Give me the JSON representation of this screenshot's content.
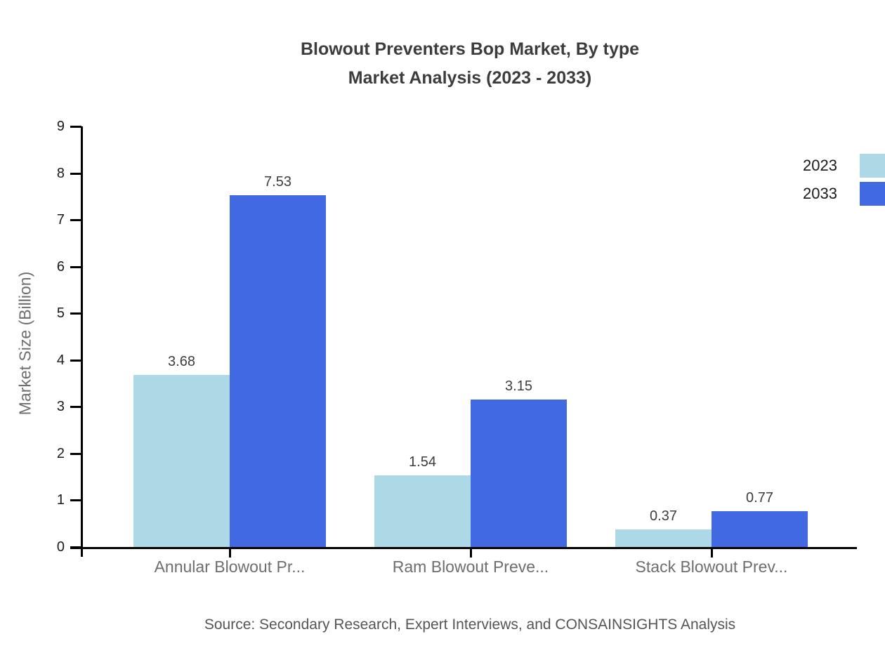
{
  "title": {
    "line1": "Blowout Preventers Bop Market, By type",
    "line2": "Market Analysis (2023 - 2033)"
  },
  "source": "Source: Secondary Research, Expert Interviews, and CONSAINSIGHTS Analysis",
  "chart_data": {
    "type": "bar",
    "title": "Blowout Preventers Bop Market, By type Market Analysis (2023 - 2033)",
    "categories": [
      "Annular Blowout Pr...",
      "Ram Blowout Preve...",
      "Stack Blowout Prev..."
    ],
    "series": [
      {
        "name": "2023",
        "color": "#ADD8E6",
        "values": [
          3.68,
          1.54,
          0.37
        ]
      },
      {
        "name": "2033",
        "color": "#4169E1",
        "values": [
          7.53,
          3.15,
          0.77
        ]
      }
    ],
    "xlabel": "",
    "ylabel": "Market Size (Billion)",
    "ylim": [
      0,
      9
    ],
    "yticks": [
      0,
      1,
      2,
      3,
      4,
      5,
      6,
      7,
      8,
      9
    ],
    "grid": false,
    "value_labels": true,
    "legend_position": "top-right",
    "axis_color": "#000000",
    "title_color": "#3c3c3c",
    "label_color": "#6e6e6e"
  }
}
